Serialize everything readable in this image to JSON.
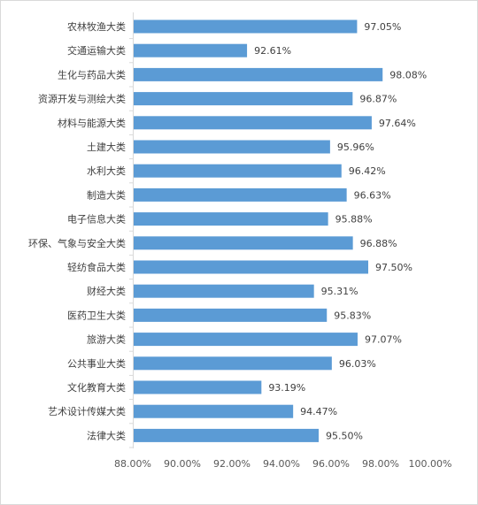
{
  "chart_data": {
    "type": "bar",
    "orientation": "horizontal",
    "title": "",
    "xlabel": "",
    "ylabel": "",
    "categories": [
      "农林牧渔大类",
      "交通运输大类",
      "生化与药品大类",
      "资源开发与测绘大类",
      "材料与能源大类",
      "土建大类",
      "水利大类",
      "制造大类",
      "电子信息大类",
      "环保、气象与安全大类",
      "轻纺食品大类",
      "财经大类",
      "医药卫生大类",
      "旅游大类",
      "公共事业大类",
      "文化教育大类",
      "艺术设计传媒大类",
      "法律大类"
    ],
    "values": [
      97.05,
      92.61,
      98.08,
      96.87,
      97.64,
      95.96,
      96.42,
      96.63,
      95.88,
      96.88,
      97.5,
      95.31,
      95.83,
      97.07,
      96.03,
      93.19,
      94.47,
      95.5
    ],
    "value_labels": [
      "97.05%",
      "92.61%",
      "98.08%",
      "96.87%",
      "97.64%",
      "95.96%",
      "96.42%",
      "96.63%",
      "95.88%",
      "96.88%",
      "97.50%",
      "95.31%",
      "95.83%",
      "97.07%",
      "96.03%",
      "93.19%",
      "94.47%",
      "95.50%"
    ],
    "xlim": [
      88,
      100
    ],
    "x_ticks": [
      "88.00%",
      "90.00%",
      "92.00%",
      "94.00%",
      "96.00%",
      "98.00%",
      "100.00%"
    ],
    "grid": false,
    "legend": "none",
    "bar_color": "#5b9bd5"
  }
}
